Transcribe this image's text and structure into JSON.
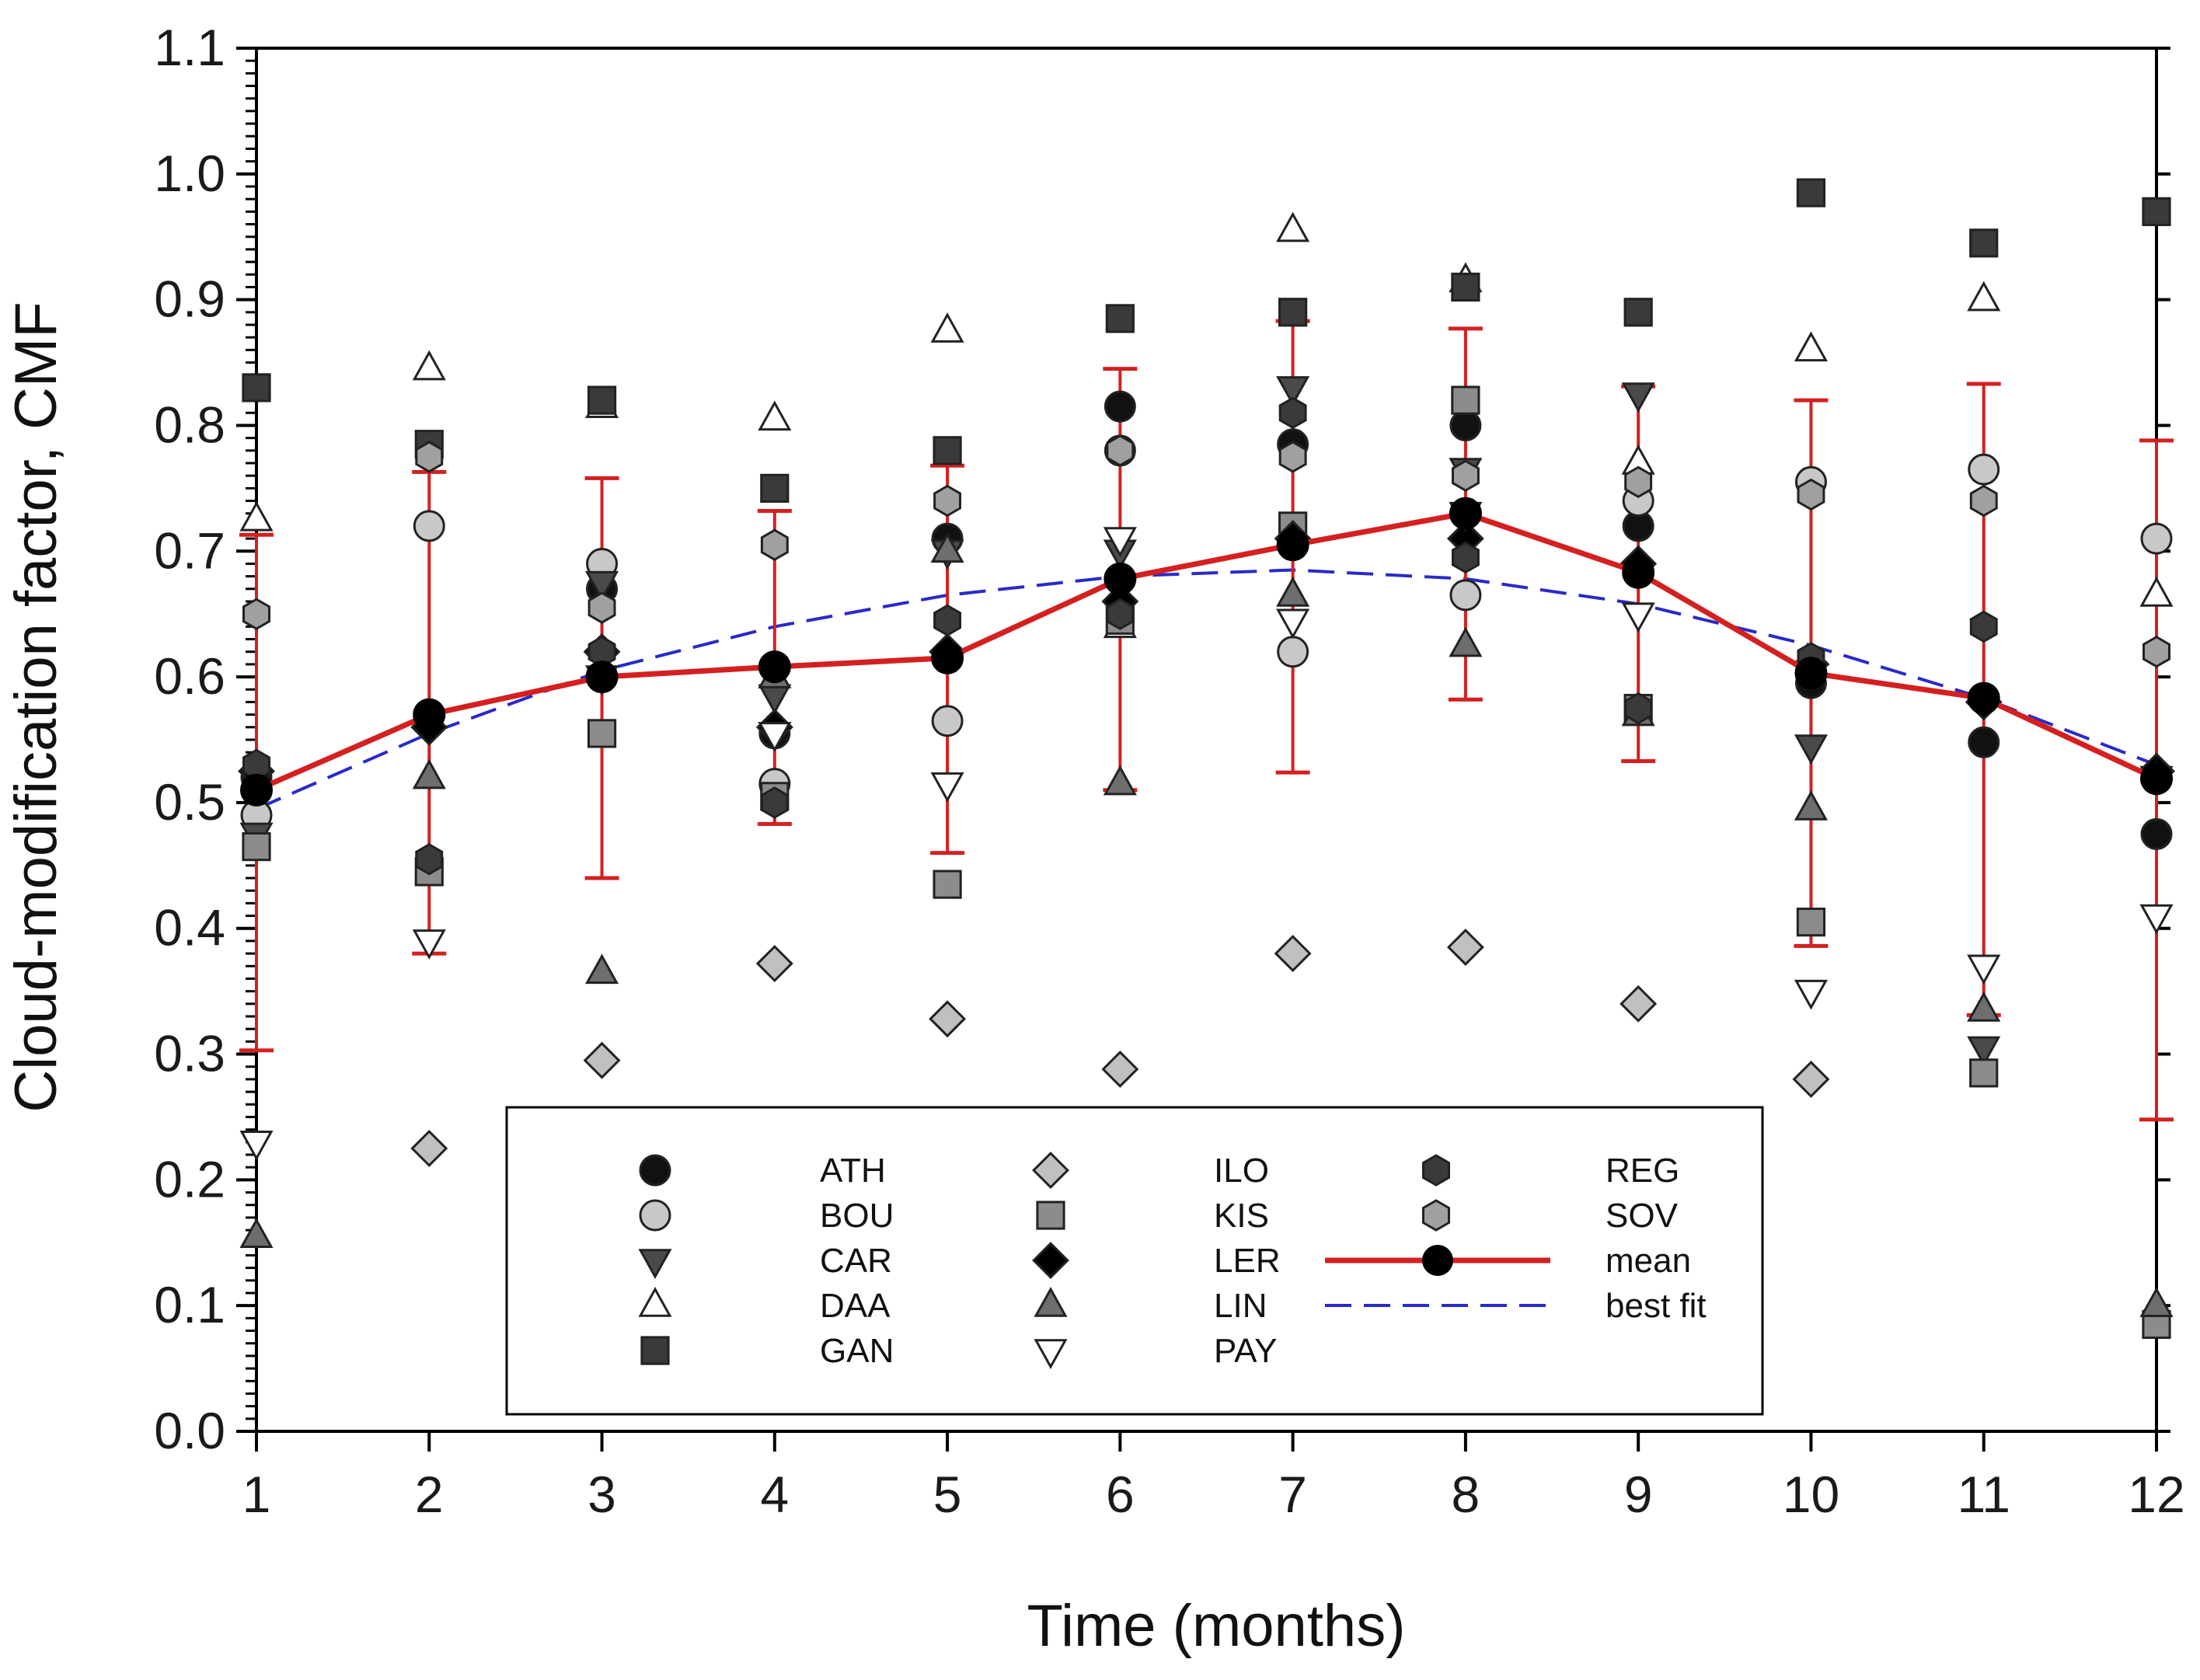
{
  "chart_data": {
    "type": "scatter",
    "title": "",
    "xlabel": "Time (months)",
    "ylabel": "Cloud-modification factor, CMF",
    "xlim": [
      1,
      12
    ],
    "ylim": [
      0.0,
      1.1
    ],
    "x_ticks": [
      "1",
      "2",
      "3",
      "4",
      "5",
      "6",
      "7",
      "8",
      "9",
      "10",
      "11",
      "12"
    ],
    "y_ticks": [
      "0.0",
      "0.1",
      "0.2",
      "0.3",
      "0.4",
      "0.5",
      "0.6",
      "0.7",
      "0.8",
      "0.9",
      "1.0",
      "1.1"
    ],
    "grid": false,
    "legend_position": "bottom-center",
    "series": [
      {
        "name": "ATH",
        "marker": "circle",
        "fill": "#111111",
        "values": [
          0.52,
          0.57,
          0.67,
          0.555,
          0.71,
          0.815,
          0.785,
          0.8,
          0.72,
          0.595,
          0.548,
          0.475
        ]
      },
      {
        "name": "BOU",
        "marker": "circle",
        "fill": "#c8c8c8",
        "values": [
          0.49,
          0.72,
          0.69,
          0.515,
          0.565,
          0.78,
          0.62,
          0.665,
          0.74,
          0.755,
          0.765,
          0.71
        ]
      },
      {
        "name": "CAR",
        "marker": "triangle-down",
        "fill": "#4a4a4a",
        "values": [
          0.475,
          0.56,
          0.675,
          0.585,
          0.7,
          0.7,
          0.83,
          0.765,
          0.825,
          0.545,
          0.305,
          0.52
        ]
      },
      {
        "name": "DAA",
        "marker": "triangle-up",
        "fill": "#ffffff",
        "values": [
          0.725,
          0.845,
          0.815,
          0.805,
          0.875,
          0.64,
          0.955,
          0.915,
          0.77,
          0.86,
          0.9,
          0.665
        ]
      },
      {
        "name": "GAN",
        "marker": "square",
        "fill": "#3a3a3a",
        "values": [
          0.83,
          0.785,
          0.82,
          0.75,
          0.78,
          0.885,
          0.89,
          0.91,
          0.89,
          0.985,
          0.945,
          0.97
        ]
      },
      {
        "name": "ILO",
        "marker": "diamond",
        "fill": "#c0c0c0",
        "values": [
          null,
          0.225,
          0.295,
          0.372,
          0.328,
          0.288,
          0.38,
          0.385,
          0.34,
          0.28,
          null,
          null
        ]
      },
      {
        "name": "KIS",
        "marker": "square",
        "fill": "#8c8c8c",
        "values": [
          0.465,
          0.445,
          0.555,
          0.505,
          0.435,
          0.645,
          0.72,
          0.82,
          0.575,
          0.405,
          0.285,
          0.085
        ]
      },
      {
        "name": "LER",
        "marker": "diamond",
        "fill": "#000000",
        "values": [
          0.525,
          0.56,
          0.62,
          0.56,
          0.62,
          0.66,
          0.71,
          0.71,
          0.69,
          0.61,
          0.58,
          0.525
        ]
      },
      {
        "name": "LIN",
        "marker": "triangle-up",
        "fill": "#6e6e6e",
        "values": [
          0.155,
          0.52,
          0.365,
          0.6,
          0.7,
          0.515,
          0.665,
          0.625,
          0.57,
          0.495,
          0.335,
          0.1
        ]
      },
      {
        "name": "PAY",
        "marker": "triangle-down",
        "fill": "#ffffff",
        "values": [
          0.23,
          0.39,
          0.6,
          0.555,
          0.515,
          0.71,
          0.645,
          0.73,
          0.65,
          0.35,
          0.37,
          0.41
        ]
      },
      {
        "name": "REG",
        "marker": "hexagon",
        "fill": "#3a3a3a",
        "values": [
          0.53,
          0.455,
          0.62,
          0.5,
          0.645,
          0.65,
          0.81,
          0.695,
          0.575,
          0.615,
          0.64,
          0.52
        ]
      },
      {
        "name": "SOV",
        "marker": "hexagon",
        "fill": "#a0a0a0",
        "values": [
          0.65,
          0.775,
          0.655,
          0.705,
          0.74,
          0.78,
          0.775,
          0.76,
          0.755,
          0.745,
          0.74,
          0.62
        ]
      }
    ],
    "mean": {
      "name": "mean",
      "color": "#d42020",
      "values": [
        0.51,
        0.57,
        0.6,
        0.608,
        0.615,
        0.678,
        0.705,
        0.73,
        0.683,
        0.603,
        0.583,
        0.519
      ],
      "error_low": [
        0.303,
        0.38,
        0.44,
        0.483,
        0.46,
        0.51,
        0.524,
        0.582,
        0.533,
        0.386,
        0.331,
        0.248
      ],
      "error_high": [
        0.713,
        0.763,
        0.758,
        0.732,
        0.768,
        0.845,
        0.883,
        0.877,
        0.831,
        0.82,
        0.833,
        0.788
      ]
    },
    "best_fit": {
      "name": "best fit",
      "color": "#2a2ac8",
      "values": [
        0.495,
        0.555,
        0.605,
        0.64,
        0.665,
        0.68,
        0.685,
        0.678,
        0.658,
        0.625,
        0.583,
        0.53
      ]
    },
    "legend": {
      "col1": [
        "ATH",
        "BOU",
        "CAR",
        "DAA",
        "GAN"
      ],
      "col2": [
        "ILO",
        "KIS",
        "LER",
        "LIN",
        "PAY"
      ],
      "col3": [
        "REG",
        "SOV",
        "mean",
        "best fit"
      ]
    }
  },
  "colors": {
    "axis": "#000000",
    "mean_line": "#d42020",
    "best_fit_line": "#2a2ac8",
    "background": "#ffffff"
  }
}
